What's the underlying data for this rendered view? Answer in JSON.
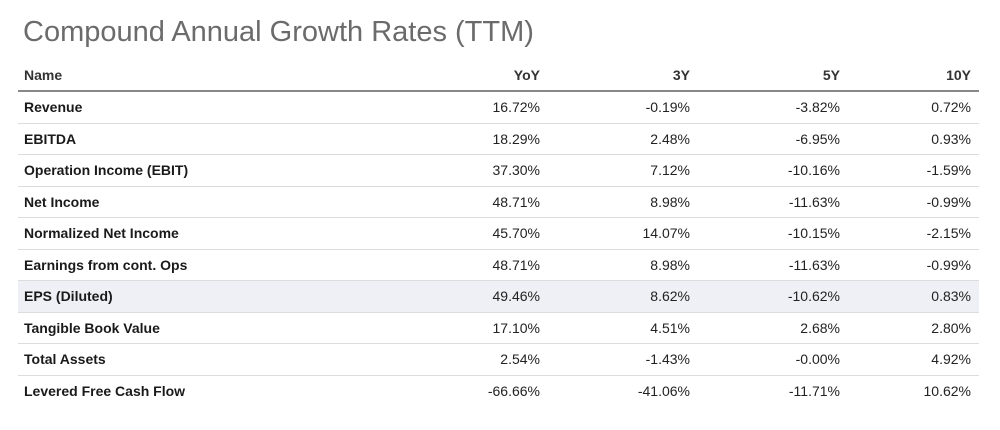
{
  "title": "Compound Annual Growth Rates (TTM)",
  "columns": [
    "Name",
    "YoY",
    "3Y",
    "5Y",
    "10Y"
  ],
  "rows": [
    {
      "name": "Revenue",
      "yoy": "16.72%",
      "y3": "-0.19%",
      "y5": "-3.82%",
      "y10": "0.72%"
    },
    {
      "name": "EBITDA",
      "yoy": "18.29%",
      "y3": "2.48%",
      "y5": "-6.95%",
      "y10": "0.93%"
    },
    {
      "name": "Operation Income (EBIT)",
      "yoy": "37.30%",
      "y3": "7.12%",
      "y5": "-10.16%",
      "y10": "-1.59%"
    },
    {
      "name": "Net Income",
      "yoy": "48.71%",
      "y3": "8.98%",
      "y5": "-11.63%",
      "y10": "-0.99%"
    },
    {
      "name": "Normalized Net Income",
      "yoy": "45.70%",
      "y3": "14.07%",
      "y5": "-10.15%",
      "y10": "-2.15%"
    },
    {
      "name": "Earnings from cont. Ops",
      "yoy": "48.71%",
      "y3": "8.98%",
      "y5": "-11.63%",
      "y10": "-0.99%"
    },
    {
      "name": "EPS (Diluted)",
      "yoy": "49.46%",
      "y3": "8.62%",
      "y5": "-10.62%",
      "y10": "0.83%"
    },
    {
      "name": "Tangible Book Value",
      "yoy": "17.10%",
      "y3": "4.51%",
      "y5": "2.68%",
      "y10": "2.80%"
    },
    {
      "name": "Total Assets",
      "yoy": "2.54%",
      "y3": "-1.43%",
      "y5": "-0.00%",
      "y10": "4.92%"
    },
    {
      "name": "Levered Free Cash Flow",
      "yoy": "-66.66%",
      "y3": "-41.06%",
      "y5": "-11.71%",
      "y10": "10.62%"
    }
  ],
  "highlight_color": "#eef0f5"
}
